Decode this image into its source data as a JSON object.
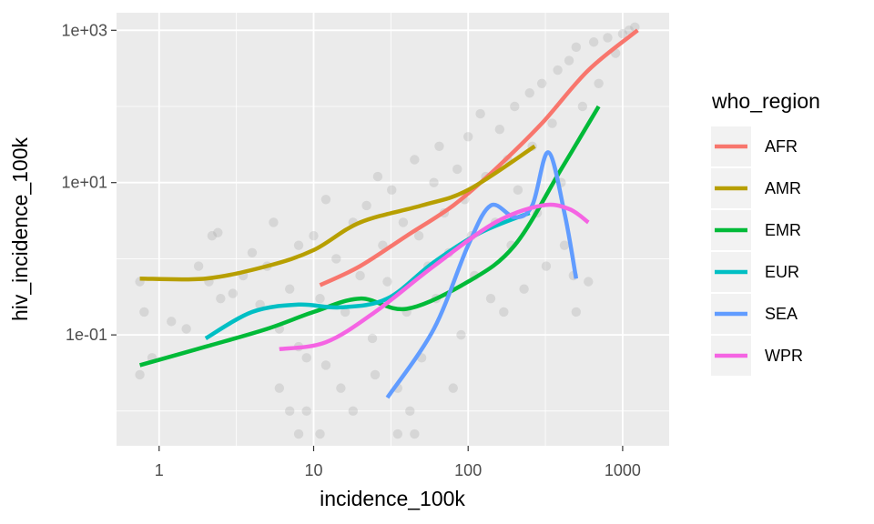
{
  "chart_data": {
    "type": "scatter",
    "title": "",
    "xlabel": "incidence_100k",
    "ylabel": "hiv_incidence_100k",
    "x_scale": "log10",
    "y_scale": "log10",
    "xlim": [
      0.53,
      2000
    ],
    "ylim": [
      0.0035,
      1700
    ],
    "x_ticks": [
      {
        "value": 1,
        "label": "1"
      },
      {
        "value": 10,
        "label": "10"
      },
      {
        "value": 100,
        "label": "100"
      },
      {
        "value": 1000,
        "label": "1000"
      }
    ],
    "y_ticks": [
      {
        "value": 0.1,
        "label": "1e-01"
      },
      {
        "value": 10,
        "label": "1e+01"
      },
      {
        "value": 1000,
        "label": "1e+03"
      }
    ],
    "grid": true,
    "legend": {
      "title": "who_region",
      "position": "right"
    },
    "colors": {
      "panel": "#ebebeb",
      "grid_major": "#ffffff",
      "points": "#a6a6a6"
    },
    "points": [
      [
        0.75,
        0.5
      ],
      [
        0.75,
        0.03
      ],
      [
        0.8,
        0.2
      ],
      [
        0.9,
        0.05
      ],
      [
        1.2,
        0.15
      ],
      [
        1.5,
        0.12
      ],
      [
        1.8,
        0.8
      ],
      [
        2.1,
        0.5
      ],
      [
        2.5,
        0.3
      ],
      [
        2.2,
        2.0
      ],
      [
        2.4,
        2.2
      ],
      [
        3.0,
        0.35
      ],
      [
        3.5,
        0.6
      ],
      [
        4,
        1.2
      ],
      [
        4.5,
        0.25
      ],
      [
        5,
        0.8
      ],
      [
        5.5,
        3
      ],
      [
        6,
        0.12
      ],
      [
        6,
        0.02
      ],
      [
        7,
        0.01
      ],
      [
        7,
        0.4
      ],
      [
        8,
        1.5
      ],
      [
        8,
        0.07
      ],
      [
        9,
        0.05
      ],
      [
        9,
        0.01
      ],
      [
        10,
        2
      ],
      [
        11,
        0.3
      ],
      [
        12,
        0.04
      ],
      [
        12,
        6
      ],
      [
        14,
        1.0
      ],
      [
        15,
        0.02
      ],
      [
        16,
        0.2
      ],
      [
        18,
        3
      ],
      [
        18,
        0.01
      ],
      [
        20,
        0.6
      ],
      [
        22,
        5
      ],
      [
        24,
        0.09
      ],
      [
        25,
        0.03
      ],
      [
        26,
        12
      ],
      [
        28,
        1.5
      ],
      [
        30,
        0.5
      ],
      [
        32,
        8
      ],
      [
        35,
        0.02
      ],
      [
        38,
        3
      ],
      [
        40,
        0.2
      ],
      [
        42,
        0.01
      ],
      [
        45,
        20
      ],
      [
        48,
        2
      ],
      [
        50,
        0.05
      ],
      [
        55,
        0.8
      ],
      [
        60,
        10
      ],
      [
        62,
        0.3
      ],
      [
        65,
        30
      ],
      [
        70,
        4
      ],
      [
        75,
        1.2
      ],
      [
        80,
        0.02
      ],
      [
        85,
        15
      ],
      [
        90,
        0.1
      ],
      [
        95,
        6
      ],
      [
        100,
        40
      ],
      [
        105,
        2
      ],
      [
        110,
        0.6
      ],
      [
        120,
        80
      ],
      [
        130,
        12
      ],
      [
        140,
        0.3
      ],
      [
        150,
        3
      ],
      [
        160,
        50
      ],
      [
        170,
        0.2
      ],
      [
        180,
        20
      ],
      [
        190,
        1.5
      ],
      [
        200,
        100
      ],
      [
        210,
        8
      ],
      [
        230,
        0.4
      ],
      [
        250,
        150
      ],
      [
        260,
        30
      ],
      [
        280,
        4
      ],
      [
        300,
        200
      ],
      [
        320,
        0.8
      ],
      [
        350,
        60
      ],
      [
        380,
        300
      ],
      [
        400,
        10
      ],
      [
        420,
        1.5
      ],
      [
        450,
        400
      ],
      [
        480,
        0.6
      ],
      [
        500,
        600
      ],
      [
        550,
        100
      ],
      [
        600,
        0.5
      ],
      [
        650,
        700
      ],
      [
        700,
        200
      ],
      [
        800,
        800
      ],
      [
        900,
        500
      ],
      [
        1000,
        900
      ],
      [
        1100,
        1000
      ],
      [
        1200,
        1100
      ],
      [
        35,
        0.005
      ],
      [
        45,
        0.005
      ],
      [
        8,
        0.005
      ],
      [
        11,
        0.005
      ],
      [
        500,
        0.2
      ]
    ],
    "series": [
      {
        "name": "AFR",
        "color": "#F8766D",
        "x": [
          11,
          20,
          40,
          80,
          150,
          300,
          600,
          1250
        ],
        "y": [
          0.45,
          0.8,
          2,
          5,
          15,
          60,
          300,
          1000
        ]
      },
      {
        "name": "AMR",
        "color": "#B79F00",
        "x": [
          0.75,
          2,
          5,
          10,
          20,
          50,
          100,
          270
        ],
        "y": [
          0.55,
          0.55,
          0.8,
          1.3,
          3,
          5,
          8,
          30
        ]
      },
      {
        "name": "EMR",
        "color": "#00BA38",
        "x": [
          0.75,
          2,
          5,
          10,
          20,
          40,
          100,
          200,
          400,
          700
        ],
        "y": [
          0.04,
          0.07,
          0.12,
          0.2,
          0.3,
          0.22,
          0.5,
          1.5,
          15,
          100
        ]
      },
      {
        "name": "EUR",
        "color": "#00BFC4",
        "x": [
          2,
          4,
          8,
          15,
          30,
          60,
          120,
          250
        ],
        "y": [
          0.09,
          0.2,
          0.25,
          0.23,
          0.3,
          0.9,
          2.2,
          4
        ]
      },
      {
        "name": "SEA",
        "color": "#619CFF",
        "x": [
          30,
          60,
          100,
          140,
          200,
          260,
          330,
          420,
          500
        ],
        "y": [
          0.015,
          0.12,
          1.5,
          5,
          3.5,
          5,
          25,
          4,
          0.55
        ]
      },
      {
        "name": "WPR",
        "color": "#F564E3",
        "x": [
          6,
          12,
          25,
          60,
          150,
          300,
          450,
          600
        ],
        "y": [
          0.065,
          0.08,
          0.2,
          0.8,
          3,
          5,
          4.5,
          3
        ]
      }
    ]
  }
}
